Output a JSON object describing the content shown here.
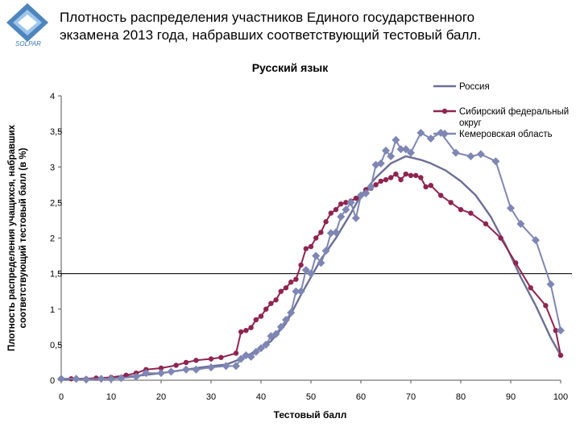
{
  "header": {
    "title_line1": "Плотность распределения участников Единого государственного",
    "title_line2": "экзамена 2013 года, набравших соответствующий тестовый балл.",
    "subtitle": "Русский язык"
  },
  "colors": {
    "russia": "#6b6f96",
    "siberia": "#8f2450",
    "kemerovo": "#7e86b4",
    "reference_line": "#222222",
    "logo_blue": "#3b78b5"
  },
  "logo": {
    "icon": "diamond-logo-icon",
    "caption": "SOLPAR"
  },
  "chart_data": {
    "type": "line",
    "xlabel": "Тестовый балл",
    "ylabel_line1": "Плотность распределения учащихся, набравших",
    "ylabel_line2": "соответствующий тестовый балл (в %)",
    "xlim": [
      0,
      100
    ],
    "ylim": [
      0,
      4
    ],
    "xticks": [
      0,
      10,
      20,
      30,
      40,
      50,
      60,
      70,
      80,
      90,
      100
    ],
    "yticks": [
      0,
      0.5,
      1,
      1.5,
      2,
      2.5,
      3,
      3.5,
      4
    ],
    "ytick_labels": [
      "0",
      "0,5",
      "1",
      "1,5",
      "2",
      "2,5",
      "3",
      "3,5",
      "4"
    ],
    "reference_line_y": 1.5,
    "legend_position": "top-right",
    "series": [
      {
        "name": "Россия",
        "marker": "none",
        "points": [
          [
            0,
            0.02
          ],
          [
            5,
            0.02
          ],
          [
            10,
            0.03
          ],
          [
            15,
            0.06
          ],
          [
            20,
            0.1
          ],
          [
            25,
            0.15
          ],
          [
            30,
            0.2
          ],
          [
            33,
            0.22
          ],
          [
            36,
            0.3
          ],
          [
            40,
            0.45
          ],
          [
            42,
            0.55
          ],
          [
            45,
            0.8
          ],
          [
            48,
            1.2
          ],
          [
            50,
            1.45
          ],
          [
            52,
            1.7
          ],
          [
            55,
            2.0
          ],
          [
            58,
            2.35
          ],
          [
            60,
            2.6
          ],
          [
            63,
            2.85
          ],
          [
            66,
            3.05
          ],
          [
            69,
            3.15
          ],
          [
            72,
            3.1
          ],
          [
            74,
            3.05
          ],
          [
            77,
            2.95
          ],
          [
            80,
            2.8
          ],
          [
            83,
            2.6
          ],
          [
            86,
            2.3
          ],
          [
            89,
            1.9
          ],
          [
            92,
            1.45
          ],
          [
            95,
            1.05
          ],
          [
            98,
            0.6
          ],
          [
            100,
            0.35
          ]
        ]
      },
      {
        "name": "Сибирский федеральный округ",
        "marker": "circle",
        "points": [
          [
            0,
            0.02
          ],
          [
            2,
            0.02
          ],
          [
            5,
            0.02
          ],
          [
            7,
            0.03
          ],
          [
            10,
            0.04
          ],
          [
            13,
            0.07
          ],
          [
            15,
            0.1
          ],
          [
            17,
            0.15
          ],
          [
            20,
            0.17
          ],
          [
            23,
            0.21
          ],
          [
            25,
            0.25
          ],
          [
            27,
            0.28
          ],
          [
            30,
            0.3
          ],
          [
            32,
            0.32
          ],
          [
            35,
            0.38
          ],
          [
            36,
            0.68
          ],
          [
            37,
            0.7
          ],
          [
            38,
            0.74
          ],
          [
            39,
            0.85
          ],
          [
            40,
            0.9
          ],
          [
            41,
            1.0
          ],
          [
            42,
            1.08
          ],
          [
            43,
            1.13
          ],
          [
            44,
            1.25
          ],
          [
            45,
            1.3
          ],
          [
            46,
            1.38
          ],
          [
            47,
            1.42
          ],
          [
            48,
            1.62
          ],
          [
            49,
            1.85
          ],
          [
            50,
            1.88
          ],
          [
            51,
            2.0
          ],
          [
            52,
            2.08
          ],
          [
            53,
            2.23
          ],
          [
            54,
            2.35
          ],
          [
            55,
            2.4
          ],
          [
            56,
            2.48
          ],
          [
            57,
            2.5
          ],
          [
            58,
            2.52
          ],
          [
            59,
            2.56
          ],
          [
            60,
            2.6
          ],
          [
            61,
            2.68
          ],
          [
            62,
            2.7
          ],
          [
            63,
            2.75
          ],
          [
            64,
            2.8
          ],
          [
            65,
            2.82
          ],
          [
            66,
            2.85
          ],
          [
            67,
            2.9
          ],
          [
            68,
            2.82
          ],
          [
            69,
            2.9
          ],
          [
            70,
            2.88
          ],
          [
            71,
            2.88
          ],
          [
            72,
            2.85
          ],
          [
            73,
            2.72
          ],
          [
            74,
            2.74
          ],
          [
            76,
            2.6
          ],
          [
            78,
            2.5
          ],
          [
            80,
            2.4
          ],
          [
            82,
            2.35
          ],
          [
            85,
            2.2
          ],
          [
            88,
            2.0
          ],
          [
            91,
            1.65
          ],
          [
            94,
            1.3
          ],
          [
            97,
            1.05
          ],
          [
            99,
            0.7
          ],
          [
            100,
            0.35
          ]
        ]
      },
      {
        "name": "Кемеровская область",
        "marker": "diamond",
        "points": [
          [
            0,
            0.02
          ],
          [
            3,
            0.02
          ],
          [
            5,
            0.01
          ],
          [
            8,
            0.02
          ],
          [
            10,
            0.02
          ],
          [
            12,
            0.03
          ],
          [
            15,
            0.05
          ],
          [
            17,
            0.1
          ],
          [
            20,
            0.1
          ],
          [
            22,
            0.12
          ],
          [
            25,
            0.15
          ],
          [
            27,
            0.15
          ],
          [
            30,
            0.18
          ],
          [
            33,
            0.2
          ],
          [
            35,
            0.2
          ],
          [
            36,
            0.3
          ],
          [
            37,
            0.35
          ],
          [
            38,
            0.33
          ],
          [
            39,
            0.4
          ],
          [
            40,
            0.45
          ],
          [
            41,
            0.5
          ],
          [
            42,
            0.62
          ],
          [
            43,
            0.65
          ],
          [
            44,
            0.75
          ],
          [
            45,
            0.85
          ],
          [
            46,
            0.95
          ],
          [
            47,
            1.25
          ],
          [
            48,
            1.25
          ],
          [
            49,
            1.55
          ],
          [
            50,
            1.5
          ],
          [
            51,
            1.75
          ],
          [
            52,
            1.65
          ],
          [
            53,
            1.82
          ],
          [
            54,
            2.07
          ],
          [
            55,
            2.08
          ],
          [
            56,
            2.3
          ],
          [
            57,
            2.4
          ],
          [
            58,
            2.5
          ],
          [
            59,
            2.28
          ],
          [
            60,
            2.6
          ],
          [
            61,
            2.63
          ],
          [
            62,
            2.72
          ],
          [
            63,
            3.03
          ],
          [
            64,
            3.05
          ],
          [
            65,
            3.23
          ],
          [
            66,
            3.15
          ],
          [
            67,
            3.38
          ],
          [
            68,
            3.25
          ],
          [
            69,
            3.25
          ],
          [
            70,
            3.2
          ],
          [
            72,
            3.48
          ],
          [
            74,
            3.4
          ],
          [
            76,
            3.48
          ],
          [
            79,
            3.2
          ],
          [
            82,
            3.15
          ],
          [
            84,
            3.18
          ],
          [
            87,
            3.08
          ],
          [
            90,
            2.42
          ],
          [
            92,
            2.2
          ],
          [
            95,
            1.97
          ],
          [
            98,
            1.35
          ],
          [
            100,
            0.7
          ]
        ]
      }
    ]
  }
}
